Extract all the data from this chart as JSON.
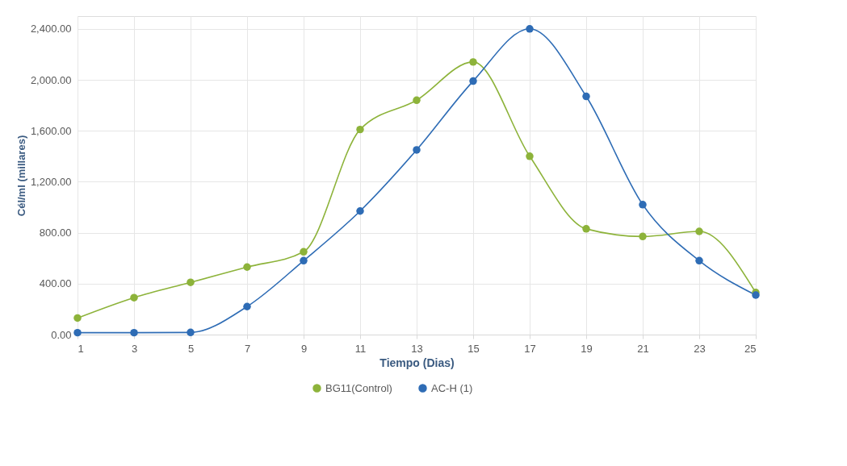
{
  "chart_data": {
    "type": "line",
    "xlabel": "Tiempo (Dias)",
    "ylabel": "Cél/ml (millares)",
    "x": [
      1,
      3,
      5,
      7,
      9,
      11,
      13,
      15,
      17,
      19,
      21,
      23,
      25
    ],
    "series": [
      {
        "name": "BG11(Control)",
        "color": "#8db33a",
        "values": [
          130,
          290,
          410,
          530,
          650,
          1610,
          1840,
          2140,
          1400,
          830,
          770,
          810,
          330
        ]
      },
      {
        "name": "AC-H (1)",
        "color": "#2e6cb5",
        "values": [
          15,
          15,
          17,
          220,
          580,
          970,
          1450,
          1990,
          2400,
          1870,
          1020,
          580,
          310
        ]
      }
    ],
    "xlim": [
      1,
      25
    ],
    "xticks": [
      1,
      3,
      5,
      7,
      9,
      11,
      13,
      15,
      17,
      19,
      21,
      23,
      25
    ],
    "ylim": [
      0,
      2500
    ],
    "yticks": [
      {
        "value": 0,
        "label": "0.00"
      },
      {
        "value": 400,
        "label": "400.00"
      },
      {
        "value": 800,
        "label": "800.00"
      },
      {
        "value": 1200,
        "label": "1,200.00"
      },
      {
        "value": 1600,
        "label": "1,600.00"
      },
      {
        "value": 2000,
        "label": "2,000.00"
      },
      {
        "value": 2400,
        "label": "2,400.00"
      }
    ],
    "grid": true,
    "legend": "bottom",
    "marker": "circle",
    "line_style": "solid"
  }
}
